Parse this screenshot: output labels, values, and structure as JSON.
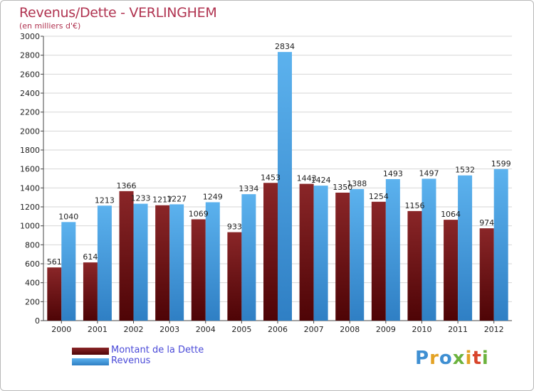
{
  "header": {
    "title": "Revenus/Dette - VERLINGHEM",
    "subtitle": "(en milliers d'€)"
  },
  "colors": {
    "title": "#b03350",
    "debt": "#7a1416",
    "revenue": "#4fa6e6",
    "legend_text": "#4a4ad8"
  },
  "legend": {
    "debt_label": "Montant de la Dette",
    "revenue_label": "Revenus"
  },
  "logo": {
    "letters": [
      "P",
      "r",
      "o",
      "x",
      "i",
      "t",
      "i"
    ],
    "letter_colors": [
      "#3f8fd2",
      "#e3a224",
      "#3f8fd2",
      "#6cb33e",
      "#e3a224",
      "#d8452b",
      "#6cb33e"
    ]
  },
  "chart_data": {
    "type": "bar",
    "categories": [
      "2000",
      "2001",
      "2002",
      "2003",
      "2004",
      "2005",
      "2006",
      "2007",
      "2008",
      "2009",
      "2010",
      "2011",
      "2012"
    ],
    "series": [
      {
        "name": "Montant de la Dette",
        "values": [
          561,
          614,
          1366,
          1217,
          1069,
          933,
          1453,
          1443,
          1350,
          1254,
          1156,
          1064,
          974
        ],
        "labels": [
          "561",
          "614",
          "1366",
          "1217",
          "1069",
          "933",
          "1453",
          "1443",
          "1350",
          "1254",
          "1156",
          "1064",
          "974"
        ]
      },
      {
        "name": "Revenus",
        "values": [
          1040,
          1213,
          1233,
          1227,
          1249,
          1334,
          2834,
          1424,
          1388,
          1493,
          1497,
          1532,
          1599
        ],
        "labels": [
          "1040",
          "1213",
          "1233",
          "1227",
          "1249",
          "1334",
          "2834",
          "1424",
          "1388",
          "1493",
          "1497",
          "1532",
          "1599"
        ]
      }
    ],
    "yticks": [
      "0",
      "200",
      "400",
      "600",
      "800",
      "1000",
      "1200",
      "1400",
      "1600",
      "1800",
      "2000",
      "2200",
      "2400",
      "2600",
      "2800",
      "3000"
    ],
    "ylim": [
      0,
      3000
    ],
    "title": "Revenus/Dette - VERLINGHEM",
    "ylabel": "(en milliers d'€)",
    "grid": true,
    "legend_position": "bottom-left"
  }
}
